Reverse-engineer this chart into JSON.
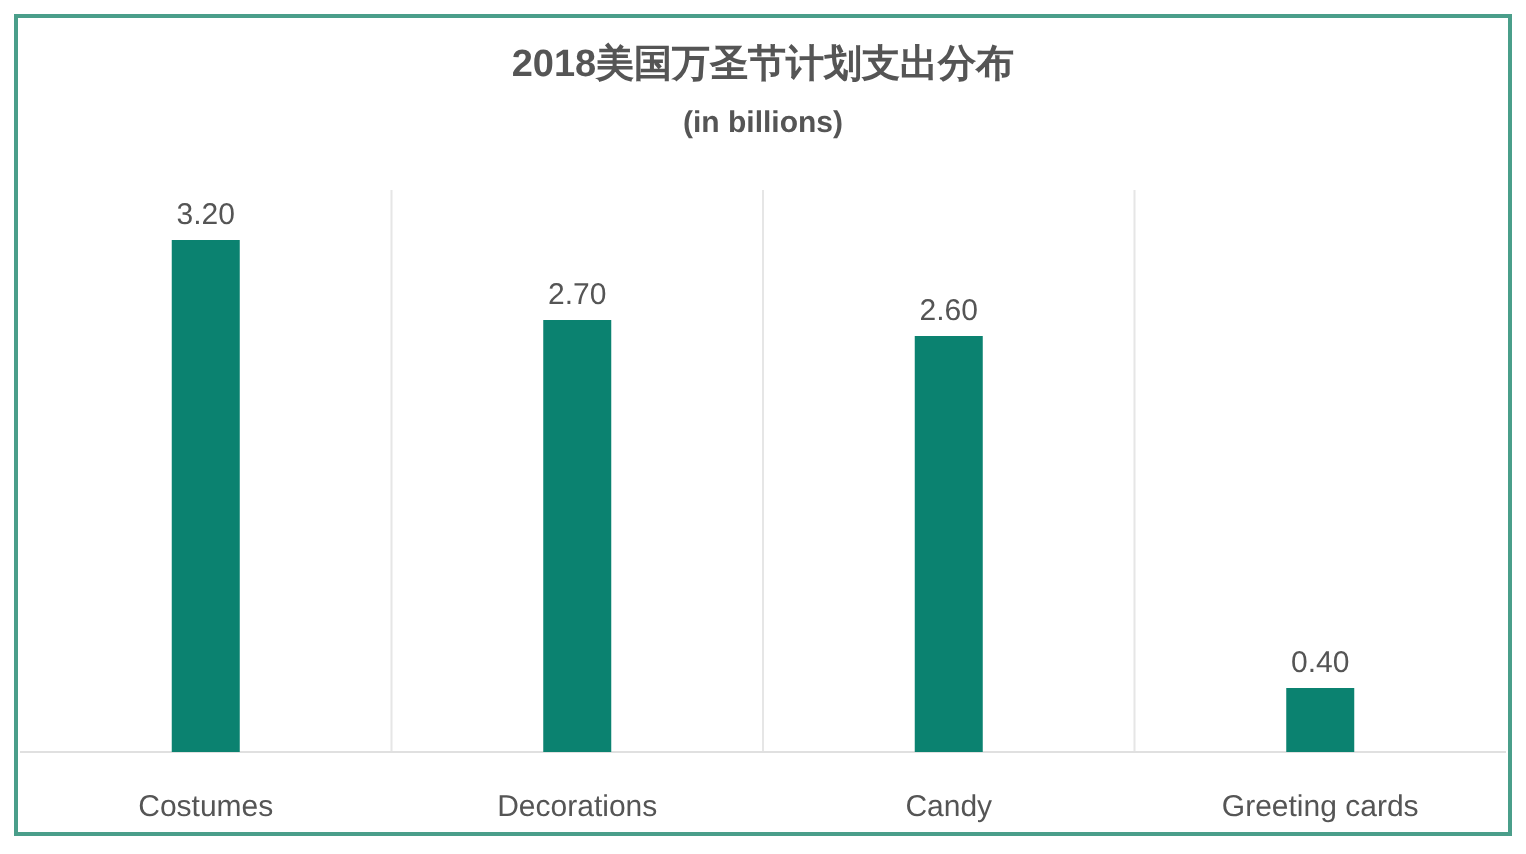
{
  "chart_data": {
    "type": "bar",
    "title": "2018美国万圣节计划支出分布",
    "subtitle": "(in billions)",
    "categories": [
      "Costumes",
      "Decorations",
      "Candy",
      "Greeting cards"
    ],
    "values": [
      3.2,
      2.7,
      2.6,
      0.4
    ],
    "value_labels": [
      "3.20",
      "2.70",
      "2.60",
      "0.40"
    ],
    "color": "#0b8270",
    "grid": "x"
  }
}
